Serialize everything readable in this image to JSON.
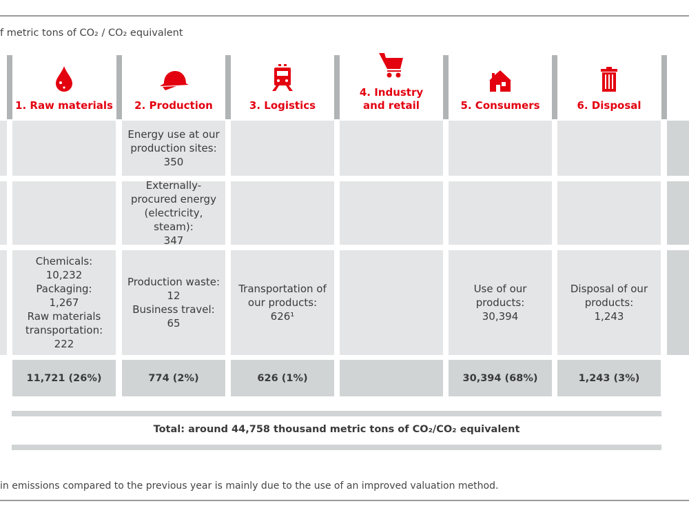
{
  "subtitle": "f metric tons of CO₂ / CO₂ equivalent",
  "footnote": "in emissions compared to the previous year is mainly due to the use of an improved valuation method.",
  "accent_color": "#e3000f",
  "columns": [
    {
      "label": "1. Raw materials",
      "icon": "drop-icon",
      "row1": "",
      "row2": "",
      "row3": "Chemicals:\n10,232\nPackaging:\n1,267\nRaw materials transportation:\n222",
      "total": "11,721 (26%)"
    },
    {
      "label": "2. Production",
      "icon": "hard-hat-icon",
      "row1": "Energy use at our production sites:\n350",
      "row2": "Externally-procured energy (electricity, steam):\n347",
      "row3": "Production waste:\n12\nBusiness travel:\n65",
      "total": "774 (2%)"
    },
    {
      "label": "3. Logistics",
      "icon": "train-icon",
      "row1": "",
      "row2": "",
      "row3": "Transportation of our products:\n626¹",
      "total": "626 (1%)"
    },
    {
      "label": "4. Industry and retail",
      "icon": "shopping-cart-icon",
      "row1": "",
      "row2": "",
      "row3": "",
      "total": ""
    },
    {
      "label": "5. Consumers",
      "icon": "house-icon",
      "row1": "",
      "row2": "",
      "row3": "Use of our products:\n30,394",
      "total": "30,394 (68%)"
    },
    {
      "label": "6. Disposal",
      "icon": "trash-icon",
      "row1": "",
      "row2": "",
      "row3": "Disposal of our products:\n1,243",
      "total": "1,243 (3%)"
    }
  ],
  "total_text": "Total: around 44,758 thousand metric tons of CO₂/CO₂ equivalent"
}
